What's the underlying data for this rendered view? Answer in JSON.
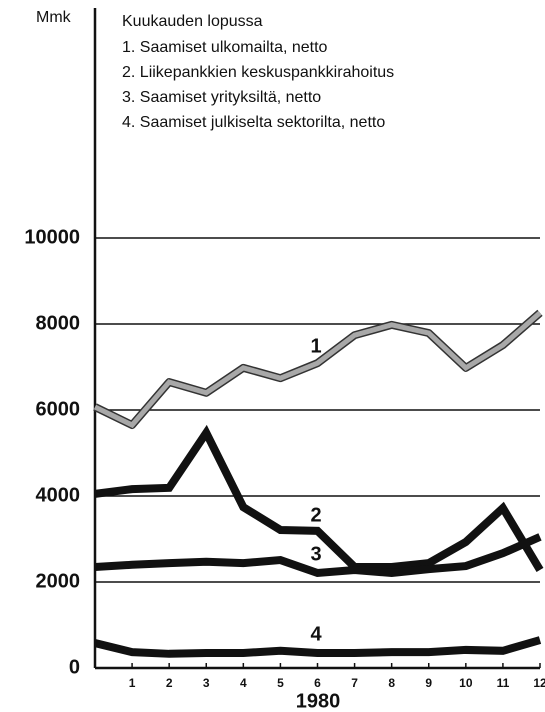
{
  "chart_data": {
    "type": "line",
    "y_label": "Mmk",
    "x_label": "1980",
    "legend_title": "Kuukauden lopussa",
    "x": [
      0,
      1,
      2,
      3,
      4,
      5,
      6,
      7,
      8,
      9,
      10,
      11,
      12
    ],
    "xlim": [
      0,
      12
    ],
    "xticks": [
      1,
      2,
      3,
      4,
      5,
      6,
      7,
      8,
      9,
      10,
      11,
      12
    ],
    "ylim": [
      0,
      10000
    ],
    "yticks": [
      0,
      2000,
      4000,
      6000,
      8000,
      10000
    ],
    "grid": true,
    "series": [
      {
        "name": "1. Saamiset ulkomailta, netto",
        "line_label": "1",
        "color": "#a8a8a8",
        "values": [
          6070,
          5650,
          6650,
          6400,
          6980,
          6740,
          7090,
          7740,
          7980,
          7790,
          6980,
          7510,
          8260
        ]
      },
      {
        "name": "2. Liikepankkien keskuspankkirahoitus",
        "line_label": "2",
        "color": "#111111",
        "values": [
          4050,
          4160,
          4190,
          5470,
          3740,
          3210,
          3190,
          2350,
          2350,
          2440,
          2930,
          3720,
          2280
        ]
      },
      {
        "name": "3. Saamiset yrityksiltä, netto",
        "line_label": "3",
        "color": "#111111",
        "values": [
          2350,
          2400,
          2440,
          2470,
          2440,
          2510,
          2210,
          2280,
          2210,
          2300,
          2370,
          2670,
          3050
        ]
      },
      {
        "name": "4. Saamiset julkiselta sektorilta, netto",
        "line_label": "4",
        "color": "#111111",
        "values": [
          580,
          370,
          330,
          350,
          350,
          400,
          350,
          350,
          370,
          370,
          420,
          400,
          650
        ]
      }
    ]
  }
}
